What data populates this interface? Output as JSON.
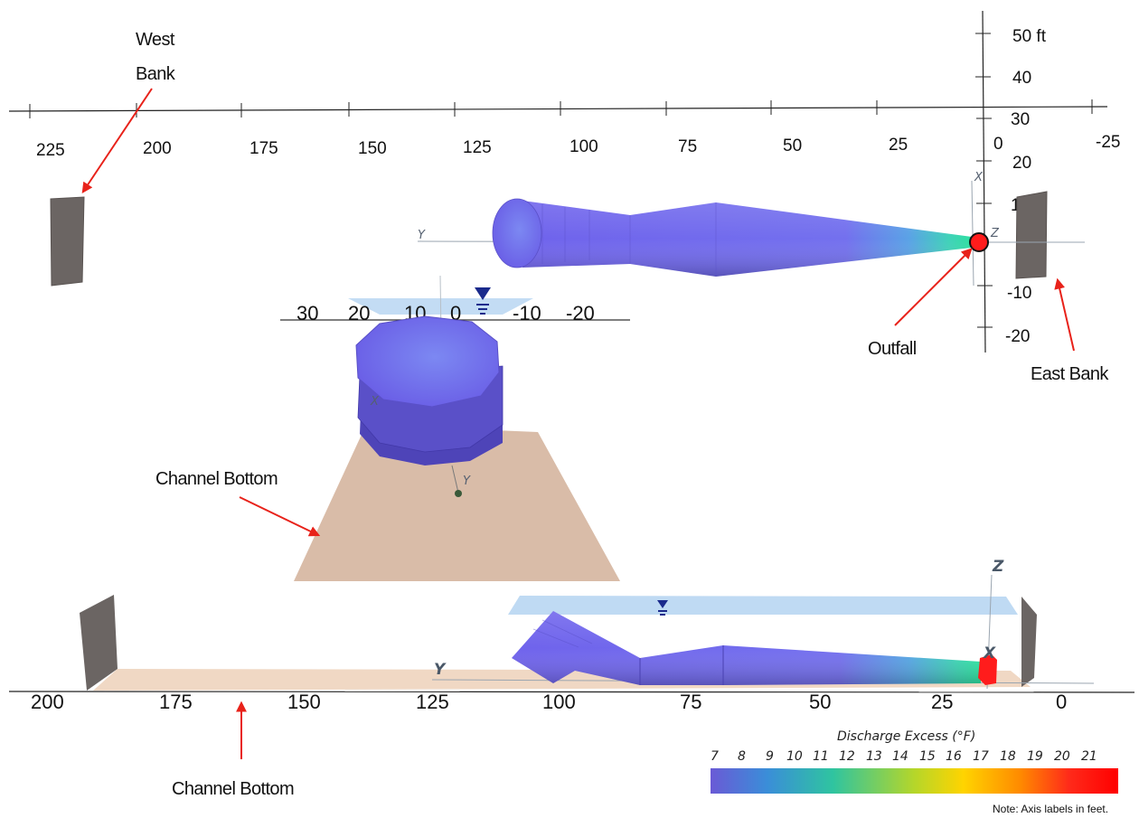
{
  "top_axis": {
    "ticks": [
      "225",
      "200",
      "175",
      "150",
      "125",
      "100",
      "75",
      "50",
      "25",
      "0",
      "-25"
    ]
  },
  "vertical_axis": {
    "ticks": [
      "50 ft",
      "40",
      "30",
      "20",
      "10",
      "0",
      "-10",
      "-20"
    ]
  },
  "cross_axis": {
    "ticks": [
      "30",
      "20",
      "10",
      "0",
      "-10",
      "-20"
    ]
  },
  "bottom_axis": {
    "ticks": [
      "200",
      "175",
      "150",
      "125",
      "100",
      "75",
      "50",
      "25",
      "0"
    ]
  },
  "axis_letters": {
    "top_x": "X",
    "top_y": "Y",
    "top_z": "Z",
    "mid_x": "X",
    "mid_y": "Y",
    "side_z": "Z",
    "side_x": "X",
    "side_y": "Y"
  },
  "annotations": {
    "west_bank": [
      "West",
      "Bank"
    ],
    "east_bank": "East Bank",
    "outfall": "Outfall",
    "channel_bottom_mid": "Channel Bottom",
    "channel_bottom_low": "Channel Bottom"
  },
  "colorbar": {
    "title": "Discharge Excess  (°F)",
    "min": 7,
    "max": 21,
    "ticks": [
      "7",
      "8",
      "9",
      "10",
      "11",
      "12",
      "13",
      "14",
      "15",
      "16",
      "17",
      "18",
      "19",
      "20",
      "21"
    ],
    "colors": [
      "#6a5ad6",
      "#3a8ed8",
      "#2fc4a0",
      "#b5d62a",
      "#ffd400",
      "#ff8a00",
      "#ff2a1a",
      "#ff0000"
    ]
  },
  "note": "Note: Axis labels in feet.",
  "colors": {
    "plume": "#7f72f0",
    "plume_dark": "#5b4fd0",
    "bank": "#6b6563",
    "channel_bottom": "#d9bca8",
    "water_surface": "#b8d6f2",
    "arrow": "#e8221a",
    "outfall": "#ff2020"
  }
}
